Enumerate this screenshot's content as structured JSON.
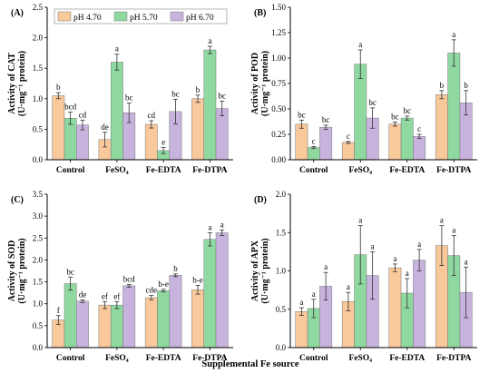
{
  "figure": {
    "xlabel": "Supplemental Fe source"
  },
  "legend": [
    {
      "label": "pH 4.70",
      "color": "#f9c89b"
    },
    {
      "label": "pH 5.70",
      "color": "#8fd8a0"
    },
    {
      "label": "pH 6.70",
      "color": "#c7b3dd"
    }
  ],
  "chart_data": [
    {
      "panel_label": "(A)",
      "type": "bar",
      "ylabel_line1": "Activity of CAT",
      "ylabel_line2": "(U·mg⁻¹ protein)",
      "categories": [
        "Control",
        "FeSO₄",
        "Fe-EDTA",
        "Fe-DTPA"
      ],
      "ylim": [
        0,
        2.5
      ],
      "yticks": [
        0.0,
        0.5,
        1.0,
        1.5,
        2.0,
        2.5
      ],
      "ytick_labels": [
        "0.0",
        "0.5",
        "1.0",
        "1.5",
        "2.0",
        "2.5"
      ],
      "series": [
        {
          "name": "pH 4.70",
          "values": [
            1.05,
            0.33,
            0.58,
            1.0
          ],
          "errors": [
            0.05,
            0.12,
            0.06,
            0.06
          ],
          "letters": [
            "b",
            "de",
            "cd",
            "b"
          ]
        },
        {
          "name": "pH 5.70",
          "values": [
            0.68,
            1.6,
            0.15,
            1.8
          ],
          "errors": [
            0.1,
            0.13,
            0.05,
            0.06
          ],
          "letters": [
            "bcd",
            "a",
            "e",
            "a"
          ]
        },
        {
          "name": "pH 6.70",
          "values": [
            0.57,
            0.77,
            0.79,
            0.84
          ],
          "errors": [
            0.08,
            0.16,
            0.2,
            0.12
          ],
          "letters": [
            "cd",
            "bc",
            "bc",
            "bc"
          ]
        }
      ]
    },
    {
      "panel_label": "(B)",
      "type": "bar",
      "ylabel_line1": "Activity of POD",
      "ylabel_line2": "(U·mg⁻¹ protein)",
      "categories": [
        "Control",
        "FeSO₄",
        "Fe-EDTA",
        "Fe-DTPA"
      ],
      "ylim": [
        0,
        1.5
      ],
      "yticks": [
        0.0,
        0.25,
        0.5,
        0.75,
        1.0,
        1.25,
        1.5
      ],
      "ytick_labels": [
        "0.00",
        "0.25",
        "0.50",
        "0.75",
        "1.00",
        "1.25",
        "1.50"
      ],
      "series": [
        {
          "name": "pH 4.70",
          "values": [
            0.35,
            0.17,
            0.35,
            0.64
          ],
          "errors": [
            0.04,
            0.01,
            0.02,
            0.04
          ],
          "letters": [
            "bc",
            "c",
            "bc",
            "b"
          ]
        },
        {
          "name": "pH 5.70",
          "values": [
            0.12,
            0.94,
            0.41,
            1.05
          ],
          "errors": [
            0.01,
            0.14,
            0.02,
            0.13
          ],
          "letters": [
            "c",
            "a",
            "bc",
            "a"
          ]
        },
        {
          "name": "pH 6.70",
          "values": [
            0.32,
            0.41,
            0.23,
            0.56
          ],
          "errors": [
            0.02,
            0.1,
            0.02,
            0.12
          ],
          "letters": [
            "bc",
            "bc",
            "c",
            "b"
          ]
        }
      ]
    },
    {
      "panel_label": "(C)",
      "type": "bar",
      "ylabel_line1": "Activity of SOD",
      "ylabel_line2": "(U·mg⁻¹ protein)",
      "categories": [
        "Control",
        "FeSO₄",
        "Fe-EDTA",
        "Fe-DTPA"
      ],
      "ylim": [
        0,
        3.5
      ],
      "yticks": [
        0.0,
        0.5,
        1.0,
        1.5,
        2.0,
        2.5,
        3.0,
        3.5
      ],
      "ytick_labels": [
        "0.0",
        "0.5",
        "1.0",
        "1.5",
        "2.0",
        "2.5",
        "3.0",
        "3.5"
      ],
      "series": [
        {
          "name": "pH 4.70",
          "values": [
            0.63,
            0.97,
            1.14,
            1.32
          ],
          "errors": [
            0.1,
            0.08,
            0.05,
            0.1
          ],
          "letters": [
            "f",
            "ef",
            "cde",
            "b-e"
          ]
        },
        {
          "name": "pH 5.70",
          "values": [
            1.46,
            0.97,
            1.3,
            2.47
          ],
          "errors": [
            0.15,
            0.08,
            0.03,
            0.15
          ],
          "letters": [
            "bc",
            "ef",
            "b-e",
            "a"
          ]
        },
        {
          "name": "pH 6.70",
          "values": [
            1.06,
            1.41,
            1.65,
            2.62
          ],
          "errors": [
            0.03,
            0.03,
            0.03,
            0.06
          ],
          "letters": [
            "de",
            "bcd",
            "b",
            "a"
          ]
        }
      ]
    },
    {
      "panel_label": "(D)",
      "type": "bar",
      "ylabel_line1": "Activity of APX",
      "ylabel_line2": "(U·mg⁻¹ protein)",
      "categories": [
        "Control",
        "FeSO₄",
        "Fe-EDTA",
        "Fe-DTPA"
      ],
      "ylim": [
        0,
        2.0
      ],
      "yticks": [
        0.0,
        0.5,
        1.0,
        1.5,
        2.0
      ],
      "ytick_labels": [
        "0.0",
        "0.5",
        "1.0",
        "1.5",
        "2.0"
      ],
      "series": [
        {
          "name": "pH 4.70",
          "values": [
            0.47,
            0.6,
            1.04,
            1.33
          ],
          "errors": [
            0.05,
            0.12,
            0.05,
            0.26
          ],
          "letters": [
            "a",
            "a",
            "a",
            "a"
          ]
        },
        {
          "name": "pH 5.70",
          "values": [
            0.51,
            1.21,
            0.71,
            1.2
          ],
          "errors": [
            0.12,
            0.38,
            0.19,
            0.26
          ],
          "letters": [
            "a",
            "a",
            "a",
            "a"
          ]
        },
        {
          "name": "pH 6.70",
          "values": [
            0.8,
            0.94,
            1.14,
            0.72
          ],
          "errors": [
            0.18,
            0.31,
            0.14,
            0.33
          ],
          "letters": [
            "a",
            "a",
            "a",
            "a"
          ]
        }
      ]
    }
  ]
}
